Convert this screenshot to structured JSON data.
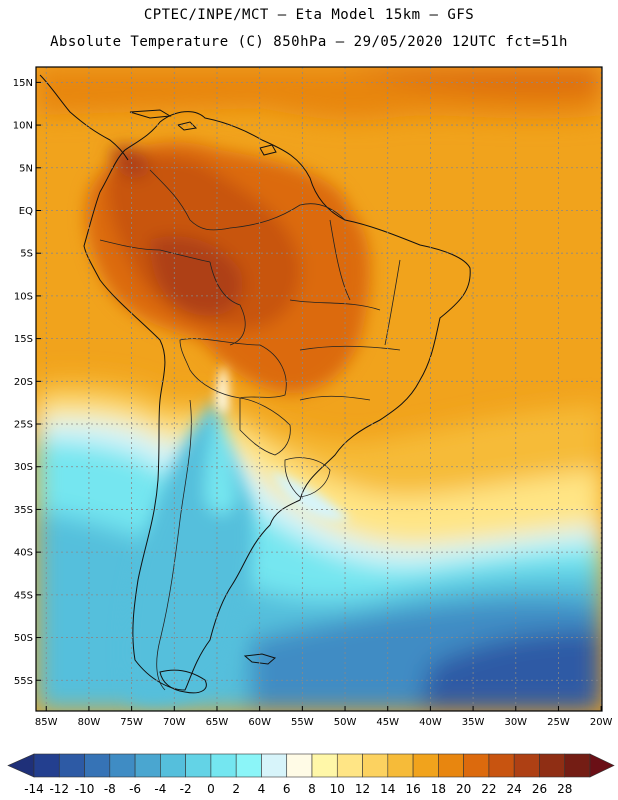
{
  "title_line1": "CPTEC/INPE/MCT –   Eta Model 15km – GFS",
  "title_line2": "Absolute Temperature (C) 850hPa – 29/05/2020 12UTC fct=51h",
  "lat_ticks": [
    "15N",
    "10N",
    "5N",
    "EQ",
    "5S",
    "10S",
    "15S",
    "20S",
    "25S",
    "30S",
    "35S",
    "40S",
    "45S",
    "50S",
    "55S"
  ],
  "lat_values": [
    15,
    10,
    5,
    0,
    -5,
    -10,
    -15,
    -20,
    -25,
    -30,
    -35,
    -40,
    -45,
    -50,
    -55
  ],
  "lon_ticks": [
    "85W",
    "80W",
    "75W",
    "70W",
    "65W",
    "60W",
    "55W",
    "50W",
    "45W",
    "40W",
    "35W",
    "30W",
    "25W",
    "20W"
  ],
  "lon_values": [
    -85,
    -80,
    -75,
    -70,
    -65,
    -60,
    -55,
    -50,
    -45,
    -40,
    -35,
    -30,
    -25,
    -20
  ],
  "colorbar": {
    "labels": [
      "-14",
      "-12",
      "-10",
      "-8",
      "-6",
      "-4",
      "-2",
      "0",
      "2",
      "4",
      "6",
      "8",
      "10",
      "12",
      "14",
      "16",
      "18",
      "20",
      "22",
      "24",
      "26",
      "28"
    ],
    "colors": [
      "#233f8f",
      "#2d5aa5",
      "#3673b6",
      "#3f8cc4",
      "#4aa6d0",
      "#55bfdc",
      "#63d3e6",
      "#74e6f0",
      "#8bf5f8",
      "#d7f4fa",
      "#fffbe6",
      "#fff7a8",
      "#ffe585",
      "#fcd260",
      "#f6bb39",
      "#f1a31c",
      "#e8860f",
      "#dc6a0d",
      "#c85410",
      "#ae4014",
      "#8f2e14",
      "#741d14"
    ],
    "under_color": "#1f3079",
    "over_color": "#6a0f16"
  }
}
